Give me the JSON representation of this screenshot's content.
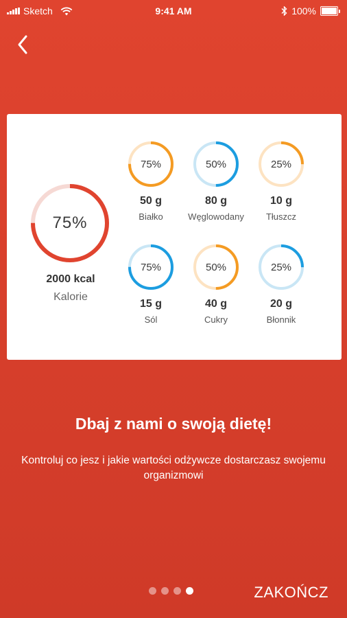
{
  "status_bar": {
    "carrier": "Sketch",
    "time": "9:41 AM",
    "battery": "100%",
    "icons": [
      "signal-icon",
      "wifi-icon",
      "bluetooth-icon",
      "battery-icon"
    ]
  },
  "nav": {
    "back_icon": "chevron-left-icon"
  },
  "card": {
    "main": {
      "percent_label": "75%",
      "percent": 75,
      "value": "2000 kcal",
      "label": "Kalorie",
      "color": "#e0442f",
      "track": "#f6d9d4"
    },
    "nutrients": [
      {
        "percent_label": "75%",
        "percent": 75,
        "value": "50 g",
        "label": "Białko",
        "color": "#f49b23",
        "track": "#fde3c2"
      },
      {
        "percent_label": "50%",
        "percent": 50,
        "value": "80 g",
        "label": "Węglowodany",
        "color": "#1c9de0",
        "track": "#c9e6f5"
      },
      {
        "percent_label": "25%",
        "percent": 25,
        "value": "10 g",
        "label": "Tłuszcz",
        "color": "#f49b23",
        "track": "#fde3c2"
      },
      {
        "percent_label": "75%",
        "percent": 75,
        "value": "15 g",
        "label": "Sól",
        "color": "#1c9de0",
        "track": "#c9e6f5"
      },
      {
        "percent_label": "50%",
        "percent": 50,
        "value": "40 g",
        "label": "Cukry",
        "color": "#f49b23",
        "track": "#fde3c2"
      },
      {
        "percent_label": "25%",
        "percent": 25,
        "value": "20 g",
        "label": "Błonnik",
        "color": "#1c9de0",
        "track": "#c9e6f5"
      }
    ]
  },
  "headline": "Dbaj z nami o swoją dietę!",
  "subtext": "Kontroluj co jesz i jakie wartości odżywcze dostarczasz swojemu organizmowi",
  "pager": {
    "count": 4,
    "active": 4
  },
  "finish_label": "ZAKOŃCZ",
  "colors": {
    "background": "#d8402c",
    "card": "#ffffff"
  }
}
